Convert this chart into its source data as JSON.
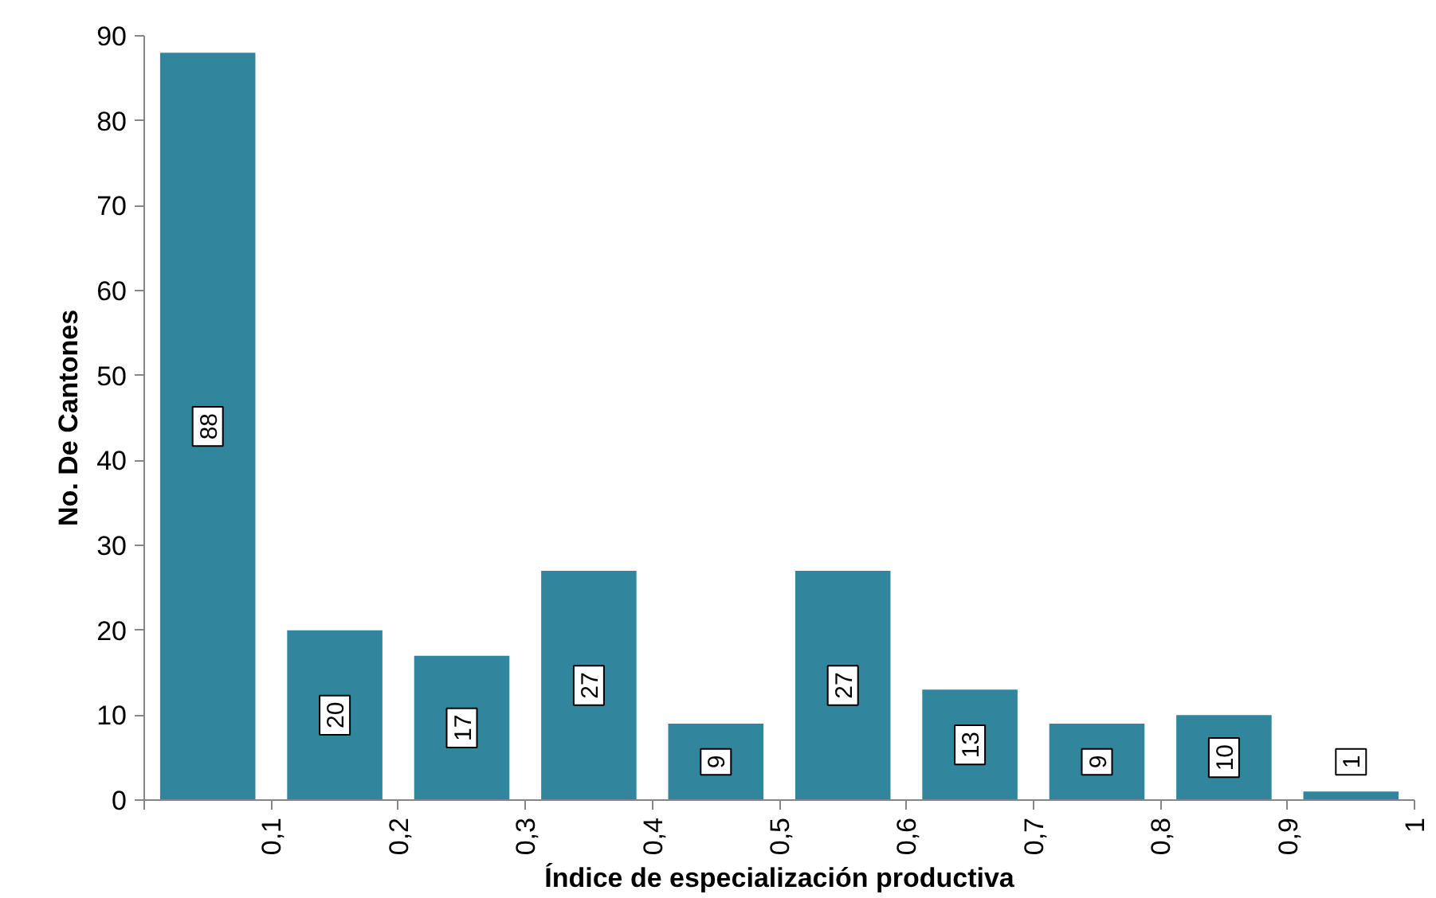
{
  "chart_data": {
    "type": "histogram",
    "xlabel": "Índice de especialización productiva",
    "ylabel": "No. De Cantones",
    "bins": [
      0,
      0.1,
      0.2,
      0.3,
      0.4,
      0.5,
      0.6,
      0.7,
      0.8,
      0.9,
      1
    ],
    "values": [
      88,
      20,
      17,
      27,
      9,
      27,
      13,
      9,
      10,
      1
    ],
    "color": "#31859c",
    "xlim": [
      0,
      1
    ],
    "ylim": [
      0,
      90
    ],
    "xticks": [
      {
        "value": 0,
        "label": null
      },
      {
        "value": 0.1,
        "label": "0,1"
      },
      {
        "value": 0.2,
        "label": "0,2"
      },
      {
        "value": 0.3,
        "label": "0,3"
      },
      {
        "value": 0.4,
        "label": "0,4"
      },
      {
        "value": 0.5,
        "label": "0,5"
      },
      {
        "value": 0.6,
        "label": "0,6"
      },
      {
        "value": 0.7,
        "label": "0,7"
      },
      {
        "value": 0.8,
        "label": "0,8"
      },
      {
        "value": 0.9,
        "label": "0,9"
      },
      {
        "value": 1,
        "label": "1"
      }
    ],
    "yticks": [
      0,
      10,
      20,
      30,
      40,
      50,
      60,
      70,
      80,
      90
    ],
    "data_labels": true,
    "grid": false
  }
}
